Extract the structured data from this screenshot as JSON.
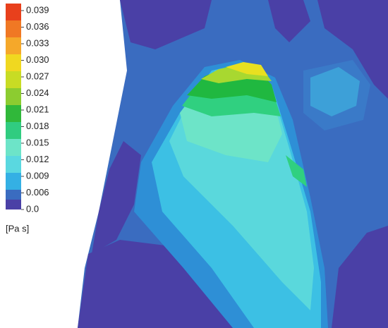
{
  "colorbar": {
    "ticks": [
      "0.039",
      "0.036",
      "0.033",
      "0.030",
      "0.027",
      "0.024",
      "0.021",
      "0.018",
      "0.015",
      "0.012",
      "0.009",
      "0.006",
      "0.0"
    ],
    "unit": "[Pa s]"
  }
}
